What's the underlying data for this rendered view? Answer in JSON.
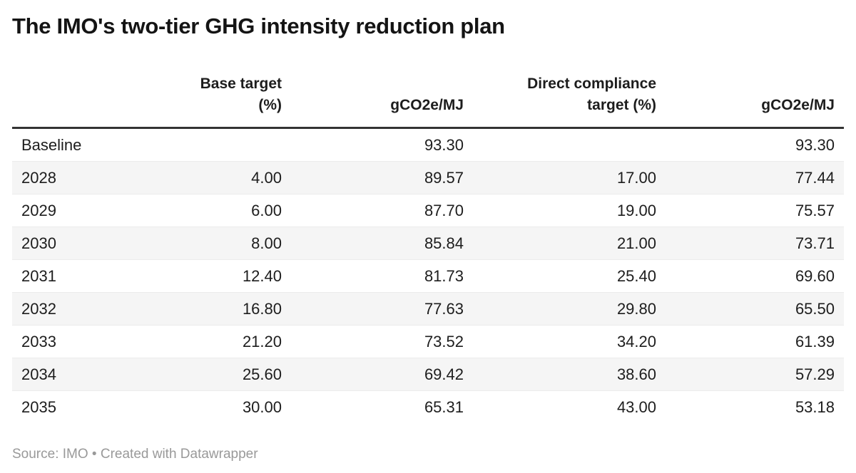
{
  "title": "The IMO's two-tier GHG intensity reduction plan",
  "table": {
    "columns": [
      {
        "id": "rowlabel",
        "label": "",
        "align": "left"
      },
      {
        "id": "base-target-pct",
        "label": "Base target\n(%)",
        "align": "right"
      },
      {
        "id": "base-gco2e-mj",
        "label": "gCO2e/MJ",
        "align": "right"
      },
      {
        "id": "direct-compliance-target-pct",
        "label": "Direct compliance\ntarget (%)",
        "align": "right"
      },
      {
        "id": "direct-gco2e-mj",
        "label": "gCO2e/MJ",
        "align": "right"
      }
    ],
    "rows": [
      {
        "label": "Baseline",
        "values": [
          "",
          "93.30",
          "",
          "93.30"
        ]
      },
      {
        "label": "2028",
        "values": [
          "4.00",
          "89.57",
          "17.00",
          "77.44"
        ]
      },
      {
        "label": "2029",
        "values": [
          "6.00",
          "87.70",
          "19.00",
          "75.57"
        ]
      },
      {
        "label": "2030",
        "values": [
          "8.00",
          "85.84",
          "21.00",
          "73.71"
        ]
      },
      {
        "label": "2031",
        "values": [
          "12.40",
          "81.73",
          "25.40",
          "69.60"
        ]
      },
      {
        "label": "2032",
        "values": [
          "16.80",
          "77.63",
          "29.80",
          "65.50"
        ]
      },
      {
        "label": "2033",
        "values": [
          "21.20",
          "73.52",
          "34.20",
          "61.39"
        ]
      },
      {
        "label": "2034",
        "values": [
          "25.60",
          "69.42",
          "38.60",
          "57.29"
        ]
      },
      {
        "label": "2035",
        "values": [
          "30.00",
          "65.31",
          "43.00",
          "53.18"
        ]
      }
    ]
  },
  "footer": {
    "text": "Source: IMO • Created with Datawrapper"
  },
  "colors": {
    "text": "#1d1d1d",
    "title_text": "#141414",
    "header_border": "#333333",
    "row_stripe": "#f5f5f5",
    "row_divider": "#ebebeb",
    "footer_text": "#999999",
    "background": "#ffffff"
  },
  "chart_data": {
    "type": "table",
    "title": "The IMO's two-tier GHG intensity reduction plan",
    "columns": [
      "",
      "Base target (%)",
      "gCO2e/MJ",
      "Direct compliance target (%)",
      "gCO2e/MJ"
    ],
    "rows": [
      [
        "Baseline",
        null,
        93.3,
        null,
        93.3
      ],
      [
        "2028",
        4.0,
        89.57,
        17.0,
        77.44
      ],
      [
        "2029",
        6.0,
        87.7,
        19.0,
        75.57
      ],
      [
        "2030",
        8.0,
        85.84,
        21.0,
        73.71
      ],
      [
        "2031",
        12.4,
        81.73,
        25.4,
        69.6
      ],
      [
        "2032",
        16.8,
        77.63,
        29.8,
        65.5
      ],
      [
        "2033",
        21.2,
        73.52,
        34.2,
        61.39
      ],
      [
        "2034",
        25.6,
        69.42,
        38.6,
        57.29
      ],
      [
        "2035",
        30.0,
        65.31,
        43.0,
        53.18
      ]
    ],
    "source": "IMO",
    "layout_hints": {
      "striped_rows": true,
      "numeric_columns_right_aligned": true,
      "header_rule": "thick dark line below header"
    }
  }
}
